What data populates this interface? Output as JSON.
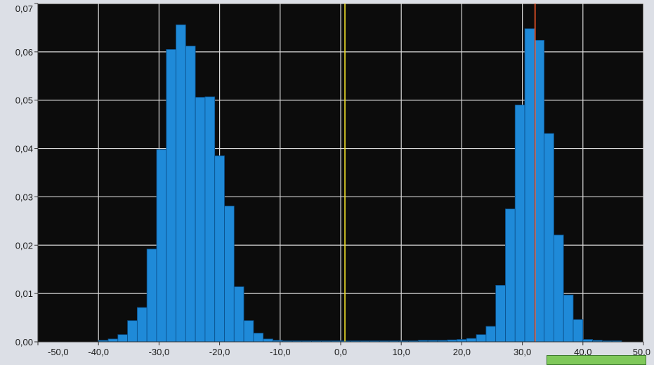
{
  "chart_data": {
    "type": "bar",
    "title": "",
    "xlabel": "",
    "ylabel": "",
    "xlim": [
      -50,
      50
    ],
    "ylim": [
      0,
      0.07
    ],
    "grid": true,
    "x_ticks": [
      -50,
      -40,
      -30,
      -20,
      -10,
      0,
      10,
      20,
      30,
      40,
      50
    ],
    "x_tick_labels": [
      "-50,0",
      "-40,0",
      "-30,0",
      "-20,0",
      "-10,0",
      "0,0",
      "10,0",
      "20,0",
      "30,0",
      "40,0",
      "50,0"
    ],
    "y_ticks": [
      0,
      0.01,
      0.02,
      0.03,
      0.04,
      0.05,
      0.06,
      0.07
    ],
    "y_tick_labels": [
      "0,00",
      "0,01",
      "0,02",
      "0,03",
      "0,04",
      "0,05",
      "0,06",
      "0,07"
    ],
    "bin_width": 1.6,
    "bins": [
      {
        "x": -39.2,
        "y": 0.0003
      },
      {
        "x": -37.6,
        "y": 0.0006
      },
      {
        "x": -36.0,
        "y": 0.0015
      },
      {
        "x": -34.4,
        "y": 0.0044
      },
      {
        "x": -32.8,
        "y": 0.0071
      },
      {
        "x": -31.2,
        "y": 0.0192
      },
      {
        "x": -29.6,
        "y": 0.0398
      },
      {
        "x": -28.0,
        "y": 0.0605
      },
      {
        "x": -26.4,
        "y": 0.0656
      },
      {
        "x": -24.8,
        "y": 0.0612
      },
      {
        "x": -23.2,
        "y": 0.0506
      },
      {
        "x": -21.6,
        "y": 0.0507
      },
      {
        "x": -20.0,
        "y": 0.0385
      },
      {
        "x": -18.4,
        "y": 0.0281
      },
      {
        "x": -16.8,
        "y": 0.0114
      },
      {
        "x": -15.2,
        "y": 0.0044
      },
      {
        "x": -13.6,
        "y": 0.0018
      },
      {
        "x": -12.0,
        "y": 0.0006
      },
      {
        "x": -10.4,
        "y": 0.0003
      },
      {
        "x": -8.8,
        "y": 0.0002
      },
      {
        "x": -7.2,
        "y": 0.0002
      },
      {
        "x": -5.6,
        "y": 0.0002
      },
      {
        "x": -4.0,
        "y": 0.0002
      },
      {
        "x": -2.4,
        "y": 0.0002
      },
      {
        "x": -0.8,
        "y": 0.0002
      },
      {
        "x": 0.8,
        "y": 0.0002
      },
      {
        "x": 2.4,
        "y": 0.0002
      },
      {
        "x": 4.0,
        "y": 0.0002
      },
      {
        "x": 5.6,
        "y": 0.0002
      },
      {
        "x": 7.2,
        "y": 0.0002
      },
      {
        "x": 8.8,
        "y": 0.0002
      },
      {
        "x": 10.4,
        "y": 0.0002
      },
      {
        "x": 12.0,
        "y": 0.0002
      },
      {
        "x": 13.6,
        "y": 0.0003
      },
      {
        "x": 15.2,
        "y": 0.0003
      },
      {
        "x": 16.8,
        "y": 0.0003
      },
      {
        "x": 18.4,
        "y": 0.0004
      },
      {
        "x": 20.0,
        "y": 0.0005
      },
      {
        "x": 21.6,
        "y": 0.0007
      },
      {
        "x": 23.2,
        "y": 0.0015
      },
      {
        "x": 24.8,
        "y": 0.0032
      },
      {
        "x": 26.4,
        "y": 0.0117
      },
      {
        "x": 28.0,
        "y": 0.0275
      },
      {
        "x": 29.6,
        "y": 0.049
      },
      {
        "x": 31.2,
        "y": 0.0648
      },
      {
        "x": 32.8,
        "y": 0.0624
      },
      {
        "x": 34.4,
        "y": 0.0431
      },
      {
        "x": 36.0,
        "y": 0.0221
      },
      {
        "x": 37.6,
        "y": 0.0097
      },
      {
        "x": 39.2,
        "y": 0.0046
      },
      {
        "x": 40.8,
        "y": 0.0005
      },
      {
        "x": 42.4,
        "y": 0.0003
      },
      {
        "x": 44.0,
        "y": 0.0002
      },
      {
        "x": 45.6,
        "y": 0.0002
      }
    ],
    "cursors": [
      {
        "x": 0.7,
        "color": "#f0e02a"
      },
      {
        "x": 32.1,
        "color": "#ff5a2a"
      }
    ],
    "bar_color": "#1f8ad8",
    "plot_background": "#0c0c0c",
    "grid_color": "#d8d8d8"
  }
}
